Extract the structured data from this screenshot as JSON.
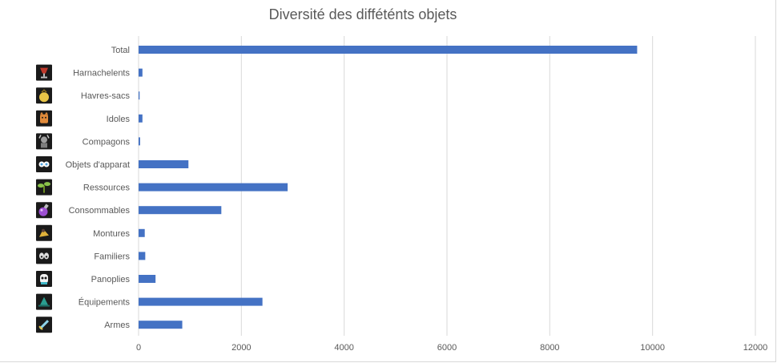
{
  "chart_data": {
    "type": "bar",
    "orientation": "horizontal",
    "title": "Diversité des difféténts objets",
    "xlabel": "",
    "ylabel": "",
    "xlim": [
      0,
      12000
    ],
    "x_ticks": [
      "0",
      "2000",
      "4000",
      "6000",
      "8000",
      "10000",
      "12000"
    ],
    "grid": true,
    "legend": "none",
    "bar_color": "#4472c4",
    "categories": [
      {
        "label": "Total",
        "value": 9700,
        "icon": ""
      },
      {
        "label": "Harnachelents",
        "value": 75,
        "icon": "goblet-icon"
      },
      {
        "label": "Havres-sacs",
        "value": 20,
        "icon": "bag-icon"
      },
      {
        "label": "Idoles",
        "value": 75,
        "icon": "idol-icon"
      },
      {
        "label": "Compagons",
        "value": 30,
        "icon": "companion-icon"
      },
      {
        "label": "Objets d'apparat",
        "value": 970,
        "icon": "cosmetic-icon"
      },
      {
        "label": "Ressources",
        "value": 2900,
        "icon": "sprout-icon"
      },
      {
        "label": "Consommables",
        "value": 1610,
        "icon": "potion-icon"
      },
      {
        "label": "Montures",
        "value": 120,
        "icon": "mount-icon"
      },
      {
        "label": "Familiers",
        "value": 130,
        "icon": "pet-icon"
      },
      {
        "label": "Panoplies",
        "value": 330,
        "icon": "mask-icon"
      },
      {
        "label": "Équipements",
        "value": 2410,
        "icon": "hat-icon"
      },
      {
        "label": "Armes",
        "value": 850,
        "icon": "sword-icon"
      }
    ]
  }
}
